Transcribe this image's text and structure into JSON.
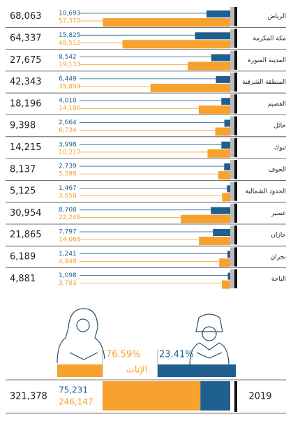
{
  "chart_data": {
    "type": "bar",
    "orientation": "horizontal",
    "xlim": [
      0,
      60000
    ],
    "categories": [
      "الرياض",
      "مكة المكرمة",
      "المدينة المنورة",
      "المنطقة الشرقية",
      "القصيم",
      "حائل",
      "تبوك",
      "الجوف",
      "الحدود الشمالية",
      "عسير",
      "جازان",
      "نجران",
      "الباحة"
    ],
    "totals": [
      68063,
      64337,
      27675,
      42343,
      18196,
      9398,
      14215,
      8137,
      5125,
      30954,
      21865,
      6189,
      4881
    ],
    "total_labels": [
      "68,063",
      "64,337",
      "27,675",
      "42,343",
      "18,196",
      "9,398",
      "14,215",
      "8,137",
      "5,125",
      "30,954",
      "21,865",
      "6,189",
      "4,881"
    ],
    "series": [
      {
        "name": "الذكور",
        "color": "#1f5f8f",
        "values": [
          10693,
          15825,
          8542,
          6449,
          4010,
          2664,
          3998,
          2739,
          1467,
          8708,
          7797,
          1241,
          1098
        ],
        "value_labels": [
          "10,693",
          "15,825",
          "8,542",
          "6,449",
          "4,010",
          "2,664",
          "3,998",
          "2,739",
          "1,467",
          "8,708",
          "7,797",
          "1,241",
          "1,098"
        ]
      },
      {
        "name": "الإناث",
        "color": "#f7a12f",
        "values": [
          57370,
          48512,
          19133,
          35894,
          14186,
          6734,
          10217,
          5398,
          3658,
          22246,
          14068,
          4948,
          3783
        ],
        "value_labels": [
          "57,370",
          "48,512",
          "19,133",
          "35,894",
          "14,186",
          "6,734",
          "10,217",
          "5,398",
          "3,658",
          "22,246",
          "14,068",
          "4,948",
          "3,783"
        ]
      }
    ],
    "summary": {
      "year": "2019",
      "total": 321378,
      "total_label": "321,378",
      "male": 75231,
      "male_label": "75,231",
      "female": 246147,
      "female_label": "246,147",
      "male_share": 23.41,
      "male_share_label": "23.41%",
      "female_share": 76.59,
      "female_share_label": "76.59%"
    }
  }
}
